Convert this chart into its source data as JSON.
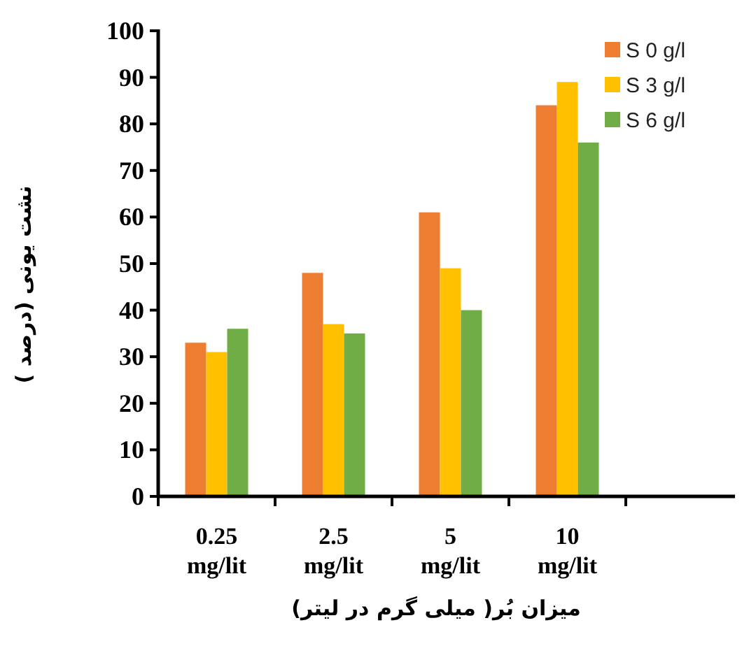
{
  "chart_data": {
    "type": "bar",
    "xlabel": "میزان بُر( میلی گرم در لیتر)",
    "ylabel": "نشت یونی (درصد )",
    "categories": [
      "0.25 mg/lit",
      "2.5 mg/lit",
      "5 mg/lit",
      "10 mg/lit"
    ],
    "series": [
      {
        "name": "S 0 g/l",
        "color": "#ed7d31",
        "values": [
          33,
          48,
          61,
          84
        ]
      },
      {
        "name": "S 3 g/l",
        "color": "#ffc000",
        "values": [
          31,
          37,
          49,
          89
        ]
      },
      {
        "name": "S 6 g/l",
        "color": "#70ad47",
        "values": [
          36,
          35,
          40,
          76
        ]
      }
    ],
    "ylim": [
      0,
      100
    ],
    "yticks": [
      0,
      10,
      20,
      30,
      40,
      50,
      60,
      70,
      80,
      90,
      100
    ],
    "legend": "top right"
  }
}
